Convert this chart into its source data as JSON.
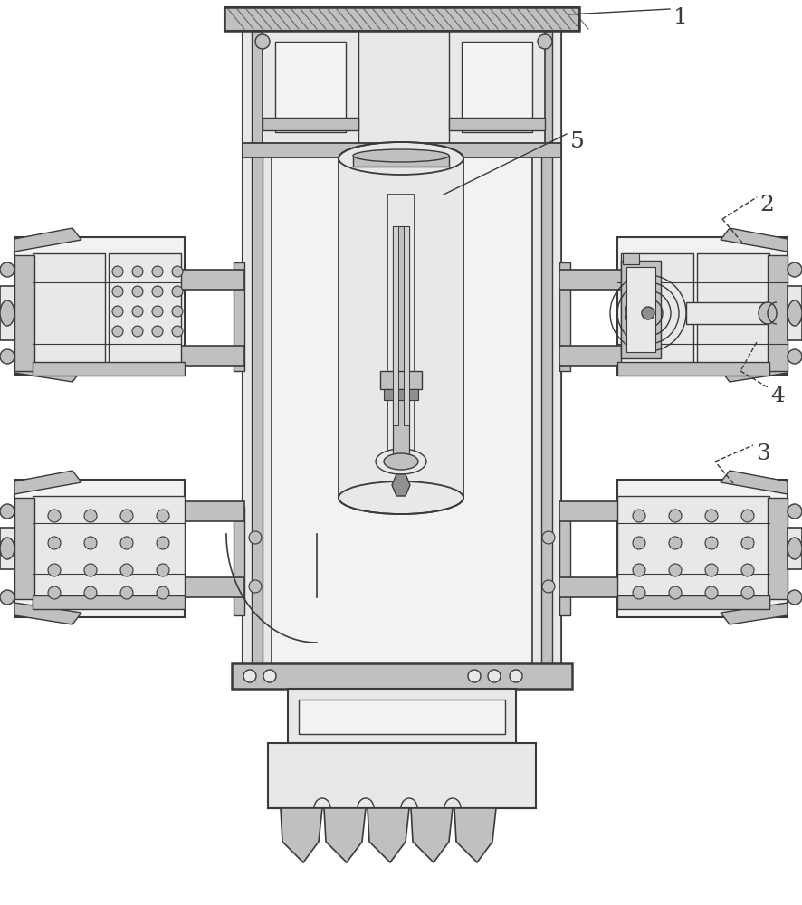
{
  "bg_color": "#ffffff",
  "line_color": "#3a3a3a",
  "fill_light": "#e8e8e8",
  "fill_medium": "#c0c0c0",
  "fill_dark": "#909090",
  "fill_very_light": "#f2f2f2",
  "hatch_color": "#505050",
  "label_1": "1",
  "label_2": "2",
  "label_3": "3",
  "label_4": "4",
  "label_5": "5",
  "label_fontsize": 18,
  "figsize": [
    8.86,
    10.0
  ],
  "dpi": 100
}
